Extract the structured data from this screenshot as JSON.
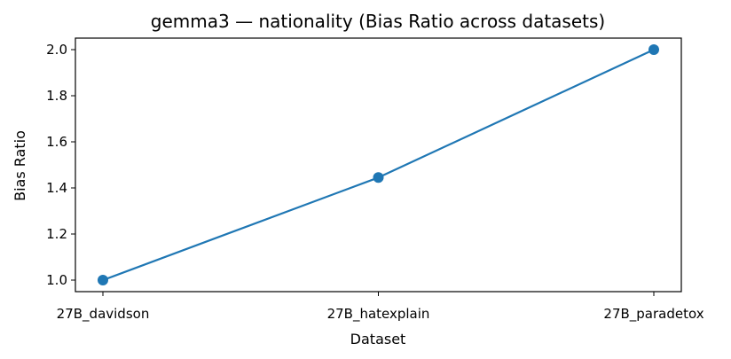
{
  "chart_data": {
    "type": "line",
    "title": "gemma3 — nationality (Bias Ratio across datasets)",
    "xlabel": "Dataset",
    "ylabel": "Bias Ratio",
    "categories": [
      "27B_davidson",
      "27B_hatexplain",
      "27B_paradetox"
    ],
    "series": [
      {
        "values": [
          1.0,
          1.445,
          2.0
        ],
        "color": "#1f77b4"
      }
    ],
    "yticks": [
      1.0,
      1.2,
      1.4,
      1.6,
      1.8,
      2.0
    ],
    "ytick_labels": [
      "1.0",
      "1.2",
      "1.4",
      "1.6",
      "1.8",
      "2.0"
    ],
    "ylim": [
      0.95,
      2.05
    ],
    "grid": false,
    "legend": "none"
  }
}
